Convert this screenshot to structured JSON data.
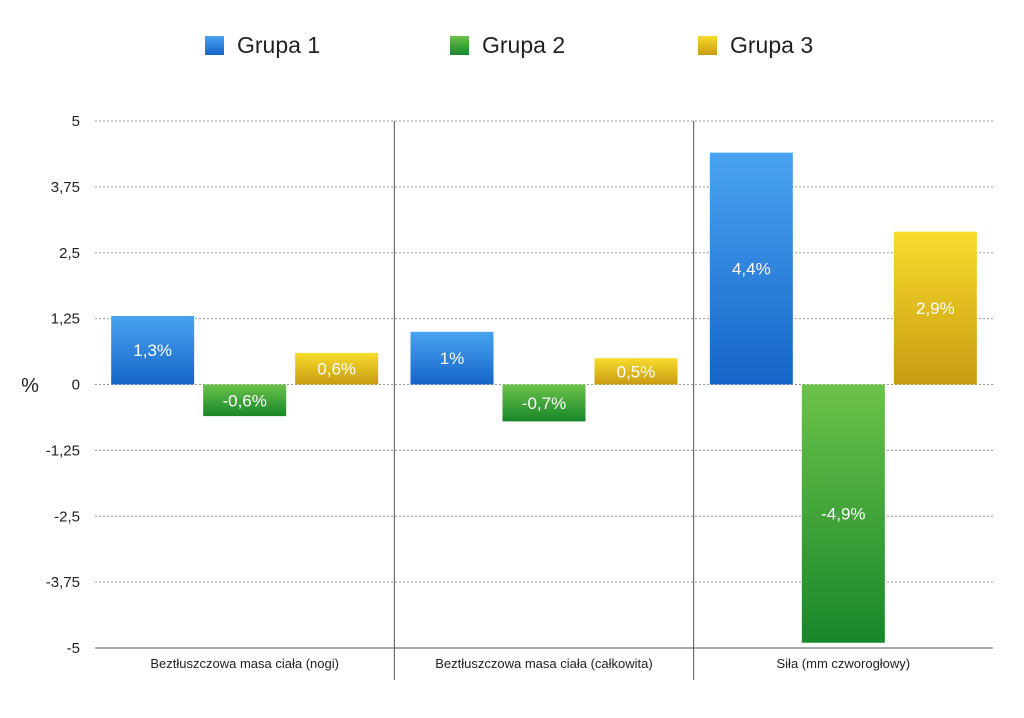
{
  "chart_data": {
    "type": "bar",
    "ylabel": "%",
    "ylim": [
      -5,
      5
    ],
    "yticks": [
      "5",
      "3,75",
      "2,5",
      "1,25",
      "0",
      "-1,25",
      "-2,5",
      "-3,75",
      "-5"
    ],
    "ytick_values": [
      5,
      3.75,
      2.5,
      1.25,
      0,
      -1.25,
      -2.5,
      -3.75,
      -5
    ],
    "grid": true,
    "legend_position": "top",
    "categories": [
      "Beztłuszczowa masa ciała (nogi)",
      "Beztłuszczowa masa ciała (całkowita)",
      "Siła (mm czworogłowy)"
    ],
    "series": [
      {
        "name": "Grupa 1",
        "values": [
          1.3,
          1.0,
          4.4
        ],
        "labels": [
          "1,3%",
          "1%",
          "4,4%"
        ],
        "color": "#2b7fd8"
      },
      {
        "name": "Grupa 2",
        "values": [
          -0.6,
          -0.7,
          -4.9
        ],
        "labels": [
          "-0,6%",
          "-0,7%",
          "-4,9%"
        ],
        "color": "#2f9d34"
      },
      {
        "name": "Grupa 3",
        "values": [
          0.6,
          0.5,
          2.9
        ],
        "labels": [
          "0,6%",
          "0,5%",
          "2,9%"
        ],
        "color": "#d9b81a"
      }
    ]
  }
}
